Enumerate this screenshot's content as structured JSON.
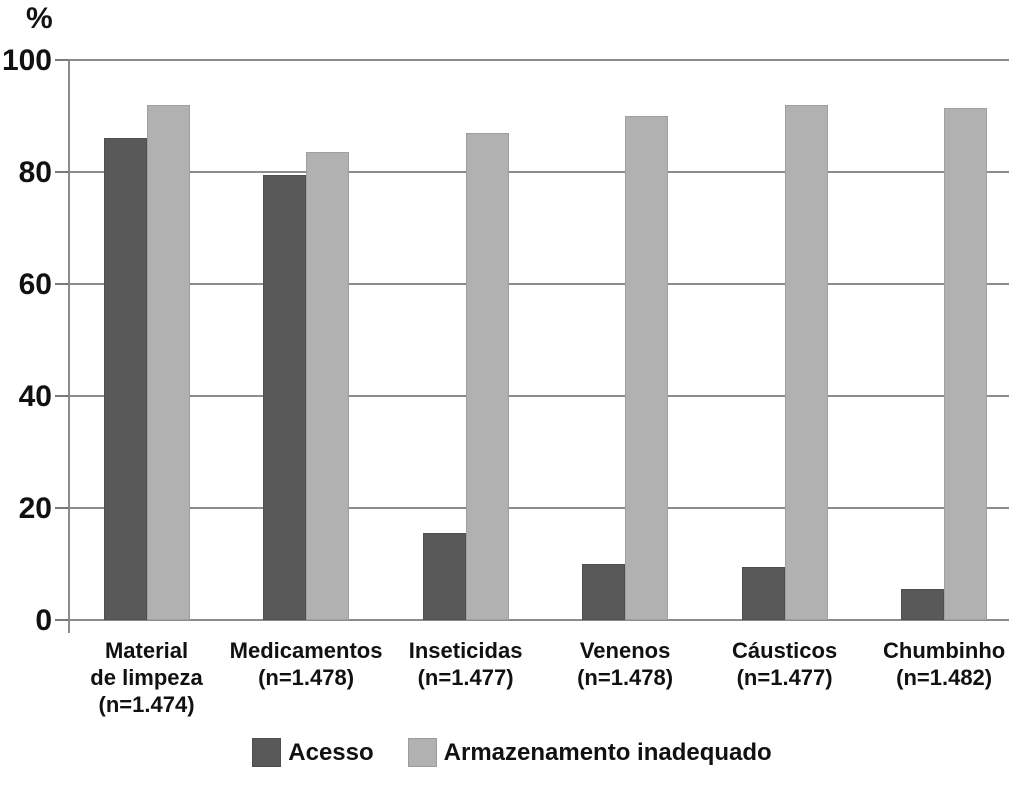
{
  "chart_data": {
    "type": "bar",
    "title": "",
    "xlabel": "",
    "ylabel": "%",
    "ylim": [
      0,
      100
    ],
    "yticks": [
      0,
      20,
      40,
      60,
      80,
      100
    ],
    "grid": true,
    "legend_position": "bottom",
    "background_color": "#ffffff",
    "gridline_color": "#8c8c8c",
    "categories": [
      {
        "lines": [
          "Material",
          "de limpeza"
        ],
        "n_label": "(n=1.474)"
      },
      {
        "lines": [
          "Medicamentos"
        ],
        "n_label": "(n=1.478)"
      },
      {
        "lines": [
          "Inseticidas"
        ],
        "n_label": "(n=1.477)"
      },
      {
        "lines": [
          "Venenos"
        ],
        "n_label": "(n=1.478)"
      },
      {
        "lines": [
          "Cáusticos"
        ],
        "n_label": "(n=1.477)"
      },
      {
        "lines": [
          "Chumbinho"
        ],
        "n_label": "(n=1.482)"
      }
    ],
    "series": [
      {
        "name": "Acesso",
        "color": "#595959",
        "values": [
          86,
          79.5,
          15.5,
          10,
          9.5,
          5.5
        ]
      },
      {
        "name": "Armazenamento inadequado",
        "color": "#b1b1b1",
        "values": [
          92,
          83.5,
          87,
          90,
          92,
          91.5
        ]
      }
    ]
  }
}
